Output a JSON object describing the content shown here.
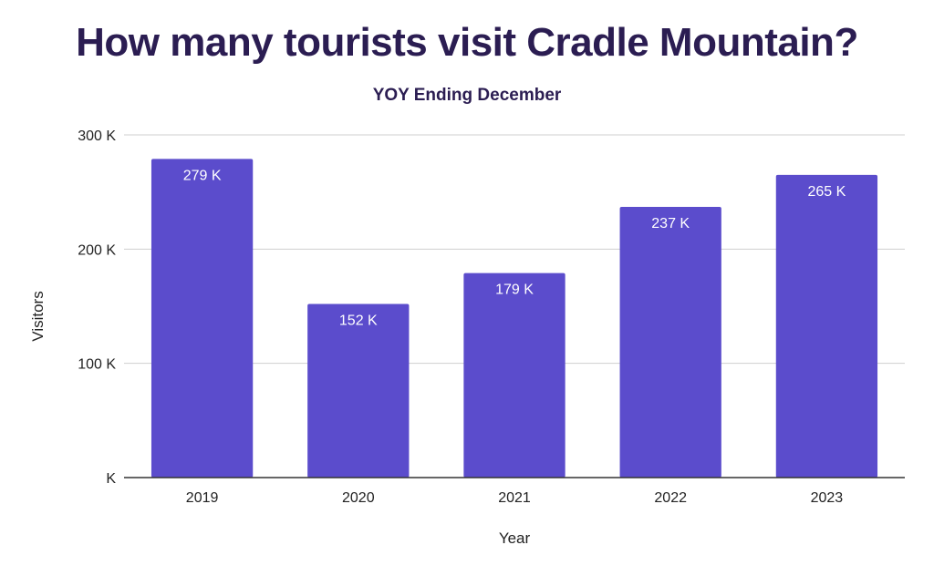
{
  "chart_data": {
    "type": "bar",
    "title": "How many tourists visit Cradle Mountain?",
    "subtitle": "YOY Ending December",
    "xlabel": "Year",
    "ylabel": "Visitors",
    "categories": [
      "2019",
      "2020",
      "2021",
      "2022",
      "2023"
    ],
    "values": [
      279,
      152,
      179,
      237,
      265
    ],
    "value_labels": [
      "279 K",
      "152 K",
      "179 K",
      "237 K",
      "265 K"
    ],
    "ylim": [
      0,
      300
    ],
    "yticks": [
      0,
      100,
      200,
      300
    ],
    "ytick_labels": [
      "K",
      "100 K",
      "200 K",
      "300 K"
    ],
    "grid": true,
    "bar_color": "#5b4ccc",
    "title_color": "#2b1d52"
  }
}
